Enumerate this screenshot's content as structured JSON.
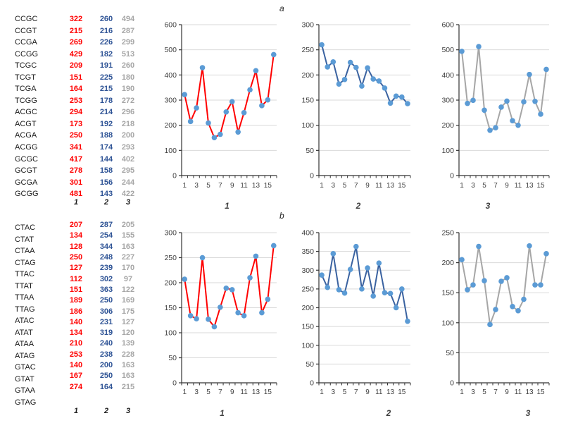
{
  "figure": {
    "panel_a_title": "a",
    "panel_b_title": "b"
  },
  "colors": {
    "background": "#FFFFFF",
    "table_column1": "#FF0000",
    "table_column2": "#2F5496",
    "table_column3": "#A6A6A6",
    "gridline": "#D9D9D9",
    "axis": "#333333",
    "marker": "#5B9BD5"
  },
  "tables": [
    {
      "panel": "a",
      "column_headers": [
        "1",
        "2",
        "3"
      ],
      "rows": [
        {
          "seq": "CCGC",
          "v1": 322,
          "v2": 260,
          "v3": 494
        },
        {
          "seq": "CCGT",
          "v1": 215,
          "v2": 216,
          "v3": 287
        },
        {
          "seq": "CCGA",
          "v1": 269,
          "v2": 226,
          "v3": 299
        },
        {
          "seq": "CCGG",
          "v1": 429,
          "v2": 182,
          "v3": 513
        },
        {
          "seq": "TCGC",
          "v1": 209,
          "v2": 191,
          "v3": 260
        },
        {
          "seq": "TCGT",
          "v1": 151,
          "v2": 225,
          "v3": 180
        },
        {
          "seq": "TCGA",
          "v1": 164,
          "v2": 215,
          "v3": 190
        },
        {
          "seq": "TCGG",
          "v1": 253,
          "v2": 178,
          "v3": 272
        },
        {
          "seq": "ACGC",
          "v1": 294,
          "v2": 214,
          "v3": 296
        },
        {
          "seq": "ACGT",
          "v1": 173,
          "v2": 192,
          "v3": 218
        },
        {
          "seq": "ACGA",
          "v1": 250,
          "v2": 188,
          "v3": 200
        },
        {
          "seq": "ACGG",
          "v1": 341,
          "v2": 174,
          "v3": 293
        },
        {
          "seq": "GCGC",
          "v1": 417,
          "v2": 144,
          "v3": 402
        },
        {
          "seq": "GCGT",
          "v1": 278,
          "v2": 158,
          "v3": 295
        },
        {
          "seq": "GCGA",
          "v1": 301,
          "v2": 156,
          "v3": 244
        },
        {
          "seq": "GCGG",
          "v1": 481,
          "v2": 143,
          "v3": 422
        }
      ]
    },
    {
      "panel": "b",
      "column_headers": [
        "1",
        "2",
        "3"
      ],
      "rows": [
        {
          "seq": "CTAC",
          "v1": 207,
          "v2": 287,
          "v3": 205
        },
        {
          "seq": "CTAT",
          "v1": 134,
          "v2": 254,
          "v3": 155
        },
        {
          "seq": "CTAA",
          "v1": 128,
          "v2": 344,
          "v3": 163
        },
        {
          "seq": "CTAG",
          "v1": 250,
          "v2": 248,
          "v3": 227
        },
        {
          "seq": "TTAC",
          "v1": 127,
          "v2": 239,
          "v3": 170
        },
        {
          "seq": "TTAT",
          "v1": 112,
          "v2": 302,
          "v3": 97
        },
        {
          "seq": "TTAA",
          "v1": 151,
          "v2": 363,
          "v3": 122
        },
        {
          "seq": "TTAG",
          "v1": 189,
          "v2": 250,
          "v3": 169
        },
        {
          "seq": "ATAC",
          "v1": 186,
          "v2": 306,
          "v3": 175
        },
        {
          "seq": "ATAT",
          "v1": 140,
          "v2": 231,
          "v3": 127
        },
        {
          "seq": "ATAA",
          "v1": 134,
          "v2": 319,
          "v3": 120
        },
        {
          "seq": "ATAG",
          "v1": 210,
          "v2": 240,
          "v3": 139
        },
        {
          "seq": "GTAC",
          "v1": 253,
          "v2": 238,
          "v3": 228
        },
        {
          "seq": "GTAT",
          "v1": 140,
          "v2": 200,
          "v3": 163
        },
        {
          "seq": "GTAA",
          "v1": 167,
          "v2": 250,
          "v3": 163
        },
        {
          "seq": "GTAG",
          "v1": 274,
          "v2": 164,
          "v3": 215
        }
      ]
    }
  ],
  "chart_data": [
    {
      "id": "a1",
      "type": "line",
      "panel": "a",
      "label": "1",
      "x": [
        1,
        2,
        3,
        4,
        5,
        6,
        7,
        8,
        9,
        10,
        11,
        12,
        13,
        14,
        15,
        16
      ],
      "values": [
        322,
        215,
        269,
        429,
        209,
        151,
        164,
        253,
        294,
        173,
        250,
        341,
        417,
        278,
        301,
        481
      ],
      "ylim": [
        0,
        600
      ],
      "yticks": [
        0,
        100,
        200,
        300,
        400,
        500,
        600
      ],
      "xtick_labels": [
        "1",
        "3",
        "5",
        "7",
        "9",
        "11",
        "13",
        "15"
      ],
      "grid": true,
      "legend": "none",
      "line_color": "#FF0000",
      "marker_color": "#5B9BD5"
    },
    {
      "id": "a2",
      "type": "line",
      "panel": "a",
      "label": "2",
      "x": [
        1,
        2,
        3,
        4,
        5,
        6,
        7,
        8,
        9,
        10,
        11,
        12,
        13,
        14,
        15,
        16
      ],
      "values": [
        260,
        216,
        226,
        182,
        191,
        225,
        215,
        178,
        214,
        192,
        188,
        174,
        144,
        158,
        156,
        143
      ],
      "ylim": [
        0,
        300
      ],
      "yticks": [
        0,
        50,
        100,
        150,
        200,
        250,
        300
      ],
      "xtick_labels": [
        "1",
        "3",
        "5",
        "7",
        "9",
        "11",
        "13",
        "15"
      ],
      "grid": true,
      "legend": "none",
      "line_color": "#3A62A0",
      "marker_color": "#5B9BD5"
    },
    {
      "id": "a3",
      "type": "line",
      "panel": "a",
      "label": "3",
      "x": [
        1,
        2,
        3,
        4,
        5,
        6,
        7,
        8,
        9,
        10,
        11,
        12,
        13,
        14,
        15,
        16
      ],
      "values": [
        494,
        287,
        299,
        513,
        260,
        180,
        190,
        272,
        296,
        218,
        200,
        293,
        402,
        295,
        244,
        422
      ],
      "ylim": [
        0,
        600
      ],
      "yticks": [
        0,
        100,
        200,
        300,
        400,
        500,
        600
      ],
      "xtick_labels": [
        "1",
        "3",
        "5",
        "7",
        "9",
        "11",
        "13",
        "15"
      ],
      "grid": true,
      "legend": "none",
      "line_color": "#A6A6A6",
      "marker_color": "#5B9BD5"
    },
    {
      "id": "b1",
      "type": "line",
      "panel": "b",
      "label": "1",
      "x": [
        1,
        2,
        3,
        4,
        5,
        6,
        7,
        8,
        9,
        10,
        11,
        12,
        13,
        14,
        15,
        16
      ],
      "values": [
        207,
        134,
        128,
        250,
        127,
        112,
        151,
        189,
        186,
        140,
        134,
        210,
        253,
        140,
        167,
        274
      ],
      "ylim": [
        0,
        300
      ],
      "yticks": [
        0,
        50,
        100,
        150,
        200,
        250,
        300
      ],
      "xtick_labels": [
        "1",
        "3",
        "5",
        "7",
        "9",
        "11",
        "13",
        "15"
      ],
      "grid": true,
      "legend": "none",
      "line_color": "#FF0000",
      "marker_color": "#5B9BD5"
    },
    {
      "id": "b2",
      "type": "line",
      "panel": "b",
      "label": "2",
      "x": [
        1,
        2,
        3,
        4,
        5,
        6,
        7,
        8,
        9,
        10,
        11,
        12,
        13,
        14,
        15,
        16
      ],
      "values": [
        287,
        254,
        344,
        248,
        239,
        302,
        363,
        250,
        306,
        231,
        319,
        240,
        238,
        200,
        250,
        164
      ],
      "ylim": [
        0,
        400
      ],
      "yticks": [
        0,
        50,
        100,
        150,
        200,
        250,
        300,
        350,
        400
      ],
      "xtick_labels": [
        "1",
        "3",
        "5",
        "7",
        "9",
        "11",
        "13",
        "15"
      ],
      "grid": true,
      "legend": "none",
      "line_color": "#3A62A0",
      "marker_color": "#5B9BD5"
    },
    {
      "id": "b3",
      "type": "line",
      "panel": "b",
      "label": "3",
      "x": [
        1,
        2,
        3,
        4,
        5,
        6,
        7,
        8,
        9,
        10,
        11,
        12,
        13,
        14,
        15,
        16
      ],
      "values": [
        205,
        155,
        163,
        227,
        170,
        97,
        122,
        169,
        175,
        127,
        120,
        139,
        228,
        163,
        163,
        215
      ],
      "ylim": [
        0,
        250
      ],
      "yticks": [
        0,
        50,
        100,
        150,
        200,
        250
      ],
      "xtick_labels": [
        "1",
        "3",
        "5",
        "7",
        "9",
        "11",
        "13",
        "15"
      ],
      "grid": true,
      "legend": "none",
      "line_color": "#A6A6A6",
      "marker_color": "#5B9BD5"
    }
  ]
}
